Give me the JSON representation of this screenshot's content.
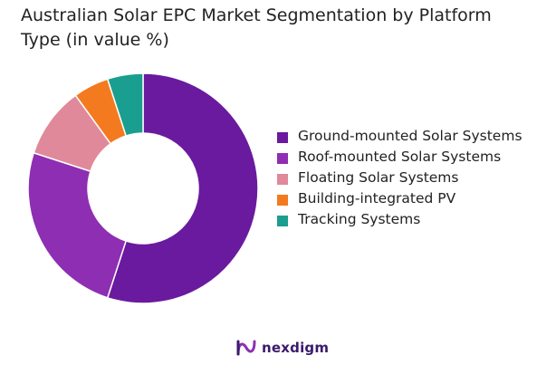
{
  "title": "Australian Solar EPC Market Segmentation by Platform Type (in value %)",
  "chart_data": {
    "type": "pie",
    "title": "Australian Solar EPC Market Segmentation by Platform Type (in value %)",
    "donut": true,
    "legend_position": "right",
    "categories": [
      "Ground-mounted Solar Systems",
      "Roof-mounted Solar Systems",
      "Floating Solar Systems",
      "Building-integrated PV",
      "Tracking Systems"
    ],
    "values": [
      55,
      25,
      10,
      5,
      5
    ],
    "colors": [
      "#6a1a9e",
      "#8e2eb3",
      "#e0899a",
      "#f47a1f",
      "#1a9e8f"
    ]
  },
  "legend": [
    {
      "label": "Ground-mounted Solar Systems",
      "color": "#6a1a9e"
    },
    {
      "label": "Roof-mounted Solar Systems",
      "color": "#8e2eb3"
    },
    {
      "label": "Floating Solar Systems",
      "color": "#e0899a"
    },
    {
      "label": "Building-integrated PV",
      "color": "#f47a1f"
    },
    {
      "label": "Tracking Systems",
      "color": "#1a9e8f"
    }
  ],
  "brand": {
    "name": "nexdigm",
    "logo_icon": "nexdigm-logo-icon",
    "color": "#3b1a6b"
  }
}
